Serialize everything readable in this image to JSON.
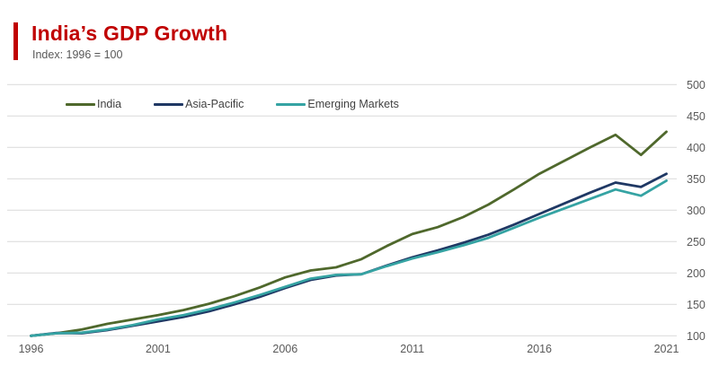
{
  "header": {
    "title": "India’s GDP Growth",
    "subtitle": "Index: 1996 = 100",
    "accent_color": "#C00000"
  },
  "chart_data": {
    "type": "line",
    "title": "India’s GDP Growth",
    "subtitle": "Index: 1996 = 100",
    "x": [
      1996,
      1997,
      1998,
      1999,
      2000,
      2001,
      2002,
      2003,
      2004,
      2005,
      2006,
      2007,
      2008,
      2009,
      2010,
      2011,
      2012,
      2013,
      2014,
      2015,
      2016,
      2017,
      2018,
      2019,
      2020,
      2021
    ],
    "x_tick_labels": [
      1996,
      2001,
      2006,
      2011,
      2016,
      2021
    ],
    "ylim": [
      100,
      500
    ],
    "y_ticks": [
      100,
      150,
      200,
      250,
      300,
      350,
      400,
      450,
      500
    ],
    "grid": "horizontal",
    "gridline_color": "#D9D9D9",
    "axis_label_color": "#595959",
    "legend_position": "top-left-inside",
    "series": [
      {
        "name": "India",
        "color": "#4F682C",
        "values": [
          100,
          104,
          110,
          119,
          126,
          133,
          141,
          151,
          163,
          177,
          193,
          204,
          209,
          222,
          243,
          262,
          273,
          289,
          309,
          333,
          358,
          379,
          400,
          420,
          388,
          425
        ]
      },
      {
        "name": "Asia-Pacific",
        "color": "#1F3864",
        "values": [
          100,
          104.5,
          104,
          109,
          116,
          123,
          130,
          139,
          150,
          162,
          176,
          189,
          196,
          198,
          212,
          225,
          236,
          248,
          261,
          277,
          294,
          311,
          328,
          344,
          337,
          358
        ]
      },
      {
        "name": "Emerging Markets",
        "color": "#35A3A3",
        "values": [
          100,
          104,
          105,
          110,
          117,
          126,
          133,
          142,
          153,
          165,
          178,
          191,
          197,
          198,
          211,
          223,
          233,
          244,
          256,
          272,
          288,
          303,
          318,
          333,
          323,
          347
        ]
      }
    ]
  }
}
